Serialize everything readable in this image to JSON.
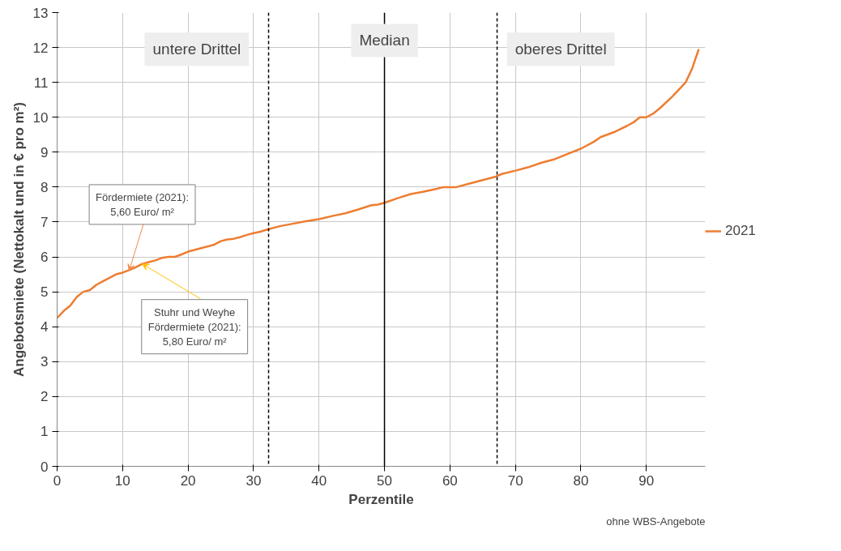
{
  "chart_data": {
    "type": "line",
    "xlabel": "Perzentile",
    "ylabel": "Angebotsmiete (Nettokalt und in € pro m²)",
    "x": [
      0,
      1,
      2,
      3,
      4,
      5,
      6,
      7,
      8,
      9,
      10,
      11,
      12,
      13,
      14,
      15,
      16,
      17,
      18,
      19,
      20,
      22,
      24,
      25,
      26,
      27,
      28,
      29,
      30,
      31,
      32,
      34,
      36,
      38,
      40,
      42,
      44,
      46,
      48,
      49,
      50,
      52,
      54,
      56,
      58,
      59,
      61,
      63,
      65,
      67,
      68,
      70,
      72,
      74,
      76,
      78,
      80,
      82,
      83,
      85,
      87,
      88,
      89,
      90,
      91,
      92,
      94,
      96,
      97,
      98
    ],
    "series": [
      {
        "name": "2021",
        "color": "#ed7d31",
        "values": [
          4.25,
          4.45,
          4.6,
          4.85,
          5.0,
          5.05,
          5.2,
          5.3,
          5.4,
          5.5,
          5.55,
          5.62,
          5.7,
          5.8,
          5.85,
          5.9,
          5.97,
          6.0,
          6.0,
          6.07,
          6.15,
          6.25,
          6.35,
          6.45,
          6.5,
          6.52,
          6.57,
          6.63,
          6.68,
          6.72,
          6.78,
          6.88,
          6.95,
          7.02,
          7.08,
          7.17,
          7.25,
          7.36,
          7.48,
          7.5,
          7.55,
          7.68,
          7.8,
          7.87,
          7.95,
          8.0,
          8.0,
          8.1,
          8.2,
          8.3,
          8.38,
          8.47,
          8.57,
          8.7,
          8.8,
          8.95,
          9.1,
          9.3,
          9.43,
          9.57,
          9.75,
          9.85,
          10.0,
          10.0,
          10.1,
          10.25,
          10.6,
          11.0,
          11.4,
          11.95
        ]
      }
    ],
    "xlim": [
      0,
      99
    ],
    "ylim": [
      0,
      13
    ],
    "xticks": [
      0,
      10,
      20,
      30,
      40,
      50,
      60,
      70,
      80,
      90
    ],
    "yticks": [
      0,
      1,
      2,
      3,
      4,
      5,
      6,
      7,
      8,
      9,
      10,
      11,
      12,
      13
    ],
    "grid": true,
    "legend": "right",
    "marker": "none",
    "line_style": "solid",
    "ref_lines": [
      {
        "axis": "x",
        "value": 32.3,
        "line_style": "dashed",
        "color": "#000000",
        "label": "untere Drittel"
      },
      {
        "axis": "x",
        "value": 50,
        "line_style": "solid",
        "color": "#000000",
        "label": "Median"
      },
      {
        "axis": "x",
        "value": 67.2,
        "line_style": "dashed",
        "color": "#000000",
        "label": "oberes Drittel"
      }
    ],
    "annotations": [
      {
        "text": "Fördermiete (2021):\n5,60 Euro/ m²",
        "x": 11,
        "y": 5.6
      },
      {
        "text": "Stuhr und Weyhe\nFördermiete (2021):\n5,80 Euro/ m²",
        "x": 13,
        "y": 5.8
      },
      "ohne WBS-Angebote"
    ]
  }
}
